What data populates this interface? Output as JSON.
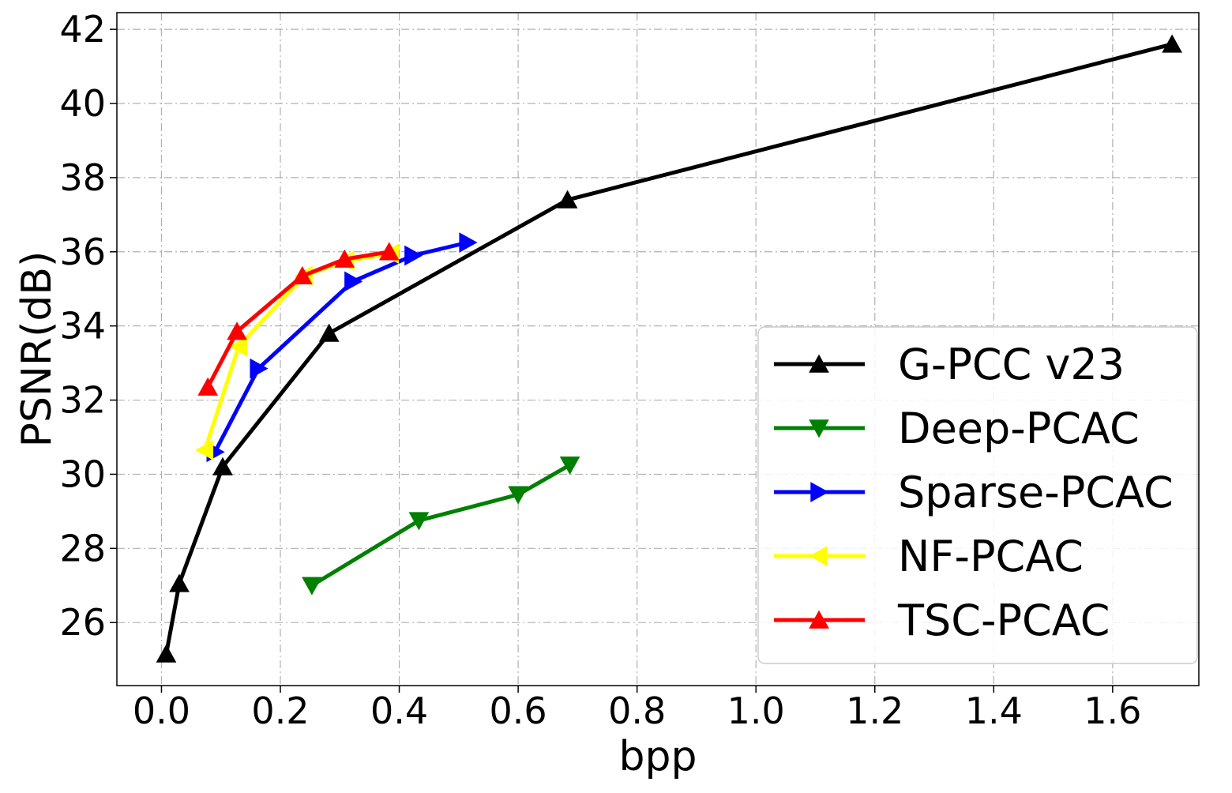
{
  "chart_data": {
    "type": "line",
    "title": "",
    "xlabel": "bpp",
    "ylabel": "PSNR(dB)",
    "xlim": [
      -0.075,
      1.745
    ],
    "ylim": [
      24.3,
      42.45
    ],
    "xticks": [
      0.0,
      0.2,
      0.4,
      0.6,
      0.8,
      1.0,
      1.2,
      1.4,
      1.6
    ],
    "xtick_labels": [
      "0.0",
      "0.2",
      "0.4",
      "0.6",
      "0.8",
      "1.0",
      "1.2",
      "1.4",
      "1.6"
    ],
    "yticks": [
      26,
      28,
      30,
      32,
      34,
      36,
      38,
      40,
      42
    ],
    "ytick_labels": [
      "26",
      "28",
      "30",
      "32",
      "34",
      "36",
      "38",
      "40",
      "42"
    ],
    "grid": true,
    "legend_position": "lower-right",
    "series": [
      {
        "name": "G-PCC v23",
        "color": "#000000",
        "marker": "triangle-up",
        "x": [
          0.008,
          0.03,
          0.103,
          0.282,
          0.683,
          1.7
        ],
        "y": [
          25.15,
          27.05,
          30.2,
          33.8,
          37.4,
          41.6
        ]
      },
      {
        "name": "Deep-PCAC",
        "color": "#008000",
        "marker": "triangle-down",
        "x": [
          0.253,
          0.433,
          0.6,
          0.687
        ],
        "y": [
          27.0,
          28.75,
          29.45,
          30.25
        ]
      },
      {
        "name": "Sparse-PCAC",
        "color": "#0000ff",
        "marker": "triangle-right",
        "x": [
          0.09,
          0.163,
          0.322,
          0.423,
          0.515
        ],
        "y": [
          30.6,
          32.85,
          35.2,
          35.9,
          36.25
        ]
      },
      {
        "name": "NF-PCAC",
        "color": "#ffff00",
        "marker": "triangle-left",
        "x": [
          0.073,
          0.13,
          0.24,
          0.31,
          0.385
        ],
        "y": [
          30.65,
          33.45,
          35.35,
          35.75,
          35.95
        ]
      },
      {
        "name": "TSC-PCAC",
        "color": "#ff0000",
        "marker": "triangle-up",
        "x": [
          0.078,
          0.127,
          0.237,
          0.308,
          0.383
        ],
        "y": [
          32.35,
          33.85,
          35.35,
          35.8,
          36.0
        ]
      }
    ]
  }
}
